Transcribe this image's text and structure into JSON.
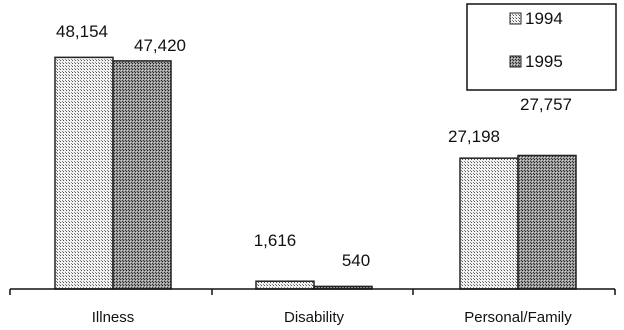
{
  "chart_data": {
    "type": "bar",
    "title": "",
    "xlabel": "",
    "ylabel": "",
    "categories": [
      "Illness",
      "Disability",
      "Personal/Family"
    ],
    "series": [
      {
        "name": "1994",
        "values": [
          48154,
          1616,
          27198
        ],
        "labels": [
          "48,154",
          "1,616",
          "27,198"
        ]
      },
      {
        "name": "1995",
        "values": [
          47420,
          540,
          27757
        ],
        "labels": [
          "47,420",
          "540",
          "27,757"
        ]
      }
    ],
    "ylim": [
      0,
      58000
    ],
    "grid": false,
    "legend": "top-right",
    "colors": {
      "fill": "#bdbdbd",
      "outline": "#222222"
    }
  }
}
